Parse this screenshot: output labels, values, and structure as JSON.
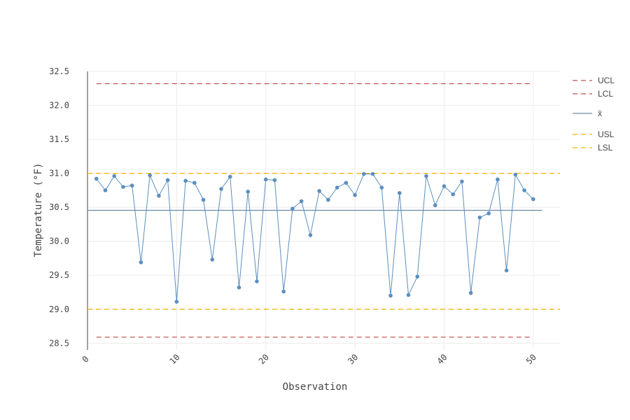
{
  "chart_data": {
    "type": "line",
    "xlabel": "Observation",
    "ylabel": "Temperature (°F)",
    "xlim": [
      0,
      53
    ],
    "ylim": [
      28.4,
      32.5
    ],
    "x_ticks": [
      0,
      10,
      20,
      30,
      40,
      50
    ],
    "y_ticks": [
      28.5,
      29.0,
      29.5,
      30.0,
      30.5,
      31.0,
      31.5,
      32.0,
      32.5
    ],
    "y_tick_labels": [
      "28.5",
      "29.0",
      "29.5",
      "30.0",
      "30.5",
      "31.0",
      "31.5",
      "32.0",
      "32.5"
    ],
    "grid": true,
    "legend_position": "top-right",
    "series": [
      {
        "color": "#5b8fbf",
        "x": [
          1,
          2,
          3,
          4,
          5,
          6,
          7,
          8,
          9,
          10,
          11,
          12,
          13,
          14,
          15,
          16,
          17,
          18,
          19,
          20,
          21,
          22,
          23,
          24,
          25,
          26,
          27,
          28,
          29,
          30,
          31,
          32,
          33,
          34,
          35,
          36,
          37,
          38,
          39,
          40,
          41,
          42,
          43,
          44,
          45,
          46,
          47,
          48,
          49,
          50
        ],
        "values": [
          30.92,
          30.75,
          30.96,
          30.8,
          30.82,
          29.69,
          30.97,
          30.67,
          30.9,
          29.11,
          30.89,
          30.86,
          30.61,
          29.73,
          30.77,
          30.95,
          29.32,
          30.73,
          29.41,
          30.91,
          30.9,
          29.26,
          30.48,
          30.59,
          30.09,
          30.74,
          30.61,
          30.79,
          30.86,
          30.68,
          30.99,
          30.99,
          30.79,
          29.2,
          30.71,
          29.21,
          29.48,
          30.96,
          30.53,
          30.81,
          30.69,
          30.88,
          29.24,
          30.35,
          30.41,
          30.91,
          29.57,
          30.98,
          30.75,
          30.62
        ]
      }
    ],
    "reference_lines": [
      {
        "name": "UCL",
        "value": 32.32,
        "x_range": [
          1,
          50
        ],
        "color": "#c0504d",
        "dash": "dashed"
      },
      {
        "name": "LCL",
        "value": 28.59,
        "x_range": [
          1,
          50
        ],
        "color": "#c0504d",
        "dash": "dashed"
      },
      {
        "name": "x̄",
        "value": 30.455,
        "x_range": [
          0,
          51
        ],
        "color": "#6d8aa8",
        "dash": "solid"
      },
      {
        "name": "USL",
        "value": 31.0,
        "x_range": [
          0,
          53
        ],
        "color": "#f0b400",
        "dash": "dashed"
      },
      {
        "name": "LSL",
        "value": 29.0,
        "x_range": [
          0,
          53
        ],
        "color": "#f0b400",
        "dash": "dashed"
      }
    ]
  }
}
